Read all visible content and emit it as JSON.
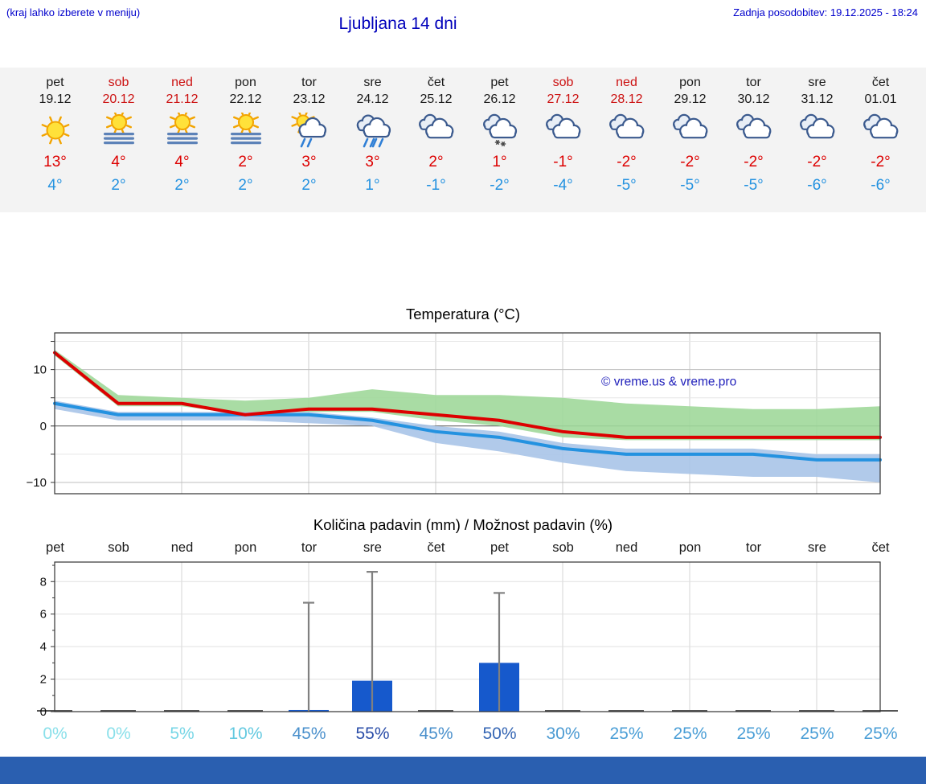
{
  "header": {
    "menu_hint": "(kraj lahko izberete v meniju)",
    "title": "Ljubljana 14 dni",
    "last_update": "Zadnja posodobitev: 19.12.2025 - 18:24"
  },
  "colors": {
    "link_blue": "#0000cc",
    "weekend_red": "#cc1111",
    "tmax_red": "#dd0000",
    "tmin_blue": "#2492e0",
    "bar_blue": "#1659cc",
    "band_green": "#a0d89a",
    "band_blue": "#a8c4e8",
    "footer_blue": "#2a5fb0"
  },
  "forecast_days": [
    {
      "name": "pet",
      "date": "19.12",
      "weekend": false,
      "icon": "sun",
      "tmax": "13°",
      "tmin": "4°"
    },
    {
      "name": "sob",
      "date": "20.12",
      "weekend": true,
      "icon": "sun-fog",
      "tmax": "4°",
      "tmin": "2°"
    },
    {
      "name": "ned",
      "date": "21.12",
      "weekend": true,
      "icon": "sun-fog",
      "tmax": "4°",
      "tmin": "2°"
    },
    {
      "name": "pon",
      "date": "22.12",
      "weekend": false,
      "icon": "sun-fog",
      "tmax": "2°",
      "tmin": "2°"
    },
    {
      "name": "tor",
      "date": "23.12",
      "weekend": false,
      "icon": "sun-rain",
      "tmax": "3°",
      "tmin": "2°"
    },
    {
      "name": "sre",
      "date": "24.12",
      "weekend": false,
      "icon": "rain",
      "tmax": "3°",
      "tmin": "1°"
    },
    {
      "name": "čet",
      "date": "25.12",
      "weekend": false,
      "icon": "cloudy",
      "tmax": "2°",
      "tmin": "-1°"
    },
    {
      "name": "pet",
      "date": "26.12",
      "weekend": false,
      "icon": "snow",
      "tmax": "1°",
      "tmin": "-2°"
    },
    {
      "name": "sob",
      "date": "27.12",
      "weekend": true,
      "icon": "cloudy",
      "tmax": "-1°",
      "tmin": "-4°"
    },
    {
      "name": "ned",
      "date": "28.12",
      "weekend": true,
      "icon": "cloudy",
      "tmax": "-2°",
      "tmin": "-5°"
    },
    {
      "name": "pon",
      "date": "29.12",
      "weekend": false,
      "icon": "cloudy",
      "tmax": "-2°",
      "tmin": "-5°"
    },
    {
      "name": "tor",
      "date": "30.12",
      "weekend": false,
      "icon": "cloudy",
      "tmax": "-2°",
      "tmin": "-5°"
    },
    {
      "name": "sre",
      "date": "31.12",
      "weekend": false,
      "icon": "cloudy",
      "tmax": "-2°",
      "tmin": "-6°"
    },
    {
      "name": "čet",
      "date": "01.01",
      "weekend": false,
      "icon": "cloudy",
      "tmax": "-2°",
      "tmin": "-6°"
    }
  ],
  "chart_data": [
    {
      "type": "line",
      "title": "Temperatura (°C)",
      "watermark": "© vreme.us & vreme.pro",
      "x_days": [
        "pet",
        "sob",
        "ned",
        "pon",
        "tor",
        "sre",
        "čet",
        "pet",
        "sob",
        "ned",
        "pon",
        "tor",
        "sre",
        "čet"
      ],
      "ylim": [
        -12,
        16.5
      ],
      "yticks": [
        10,
        0,
        -10
      ],
      "grid": true,
      "series": [
        {
          "name": "tmax",
          "color": "#dd0000",
          "values": [
            13,
            4,
            4,
            2,
            3,
            3,
            2,
            1,
            -1,
            -2,
            -2,
            -2,
            -2,
            -2
          ]
        },
        {
          "name": "tmin",
          "color": "#2492e0",
          "values": [
            4,
            2,
            2,
            2,
            2,
            1,
            -1,
            -2,
            -4,
            -5,
            -5,
            -5,
            -6,
            -6
          ]
        }
      ],
      "bands": [
        {
          "name": "tmax-range",
          "color": "#a0d89a",
          "upper": [
            13.5,
            5.5,
            5,
            4.5,
            5,
            6.5,
            5.5,
            5.5,
            5,
            4,
            3.5,
            3,
            3,
            3.5
          ],
          "lower": [
            12.5,
            3.5,
            3.5,
            2,
            2.5,
            2.5,
            1,
            0,
            -2,
            -2.5,
            -2.5,
            -2.5,
            -2.5,
            -2.5
          ]
        },
        {
          "name": "tmin-range",
          "color": "#a8c4e8",
          "upper": [
            4.5,
            2.5,
            2.5,
            2.5,
            2.5,
            1.5,
            0,
            -1,
            -3,
            -4,
            -4,
            -4,
            -5,
            -5
          ],
          "lower": [
            3,
            1,
            1,
            1,
            0.5,
            0,
            -3,
            -4.5,
            -6.5,
            -8,
            -8.5,
            -9,
            -9,
            -10
          ]
        }
      ]
    },
    {
      "type": "bar",
      "title": "Količina padavin (mm) / Možnost padavin (%)",
      "categories": [
        "pet",
        "sob",
        "ned",
        "pon",
        "tor",
        "sre",
        "čet",
        "pet",
        "sob",
        "ned",
        "pon",
        "tor",
        "sre",
        "čet"
      ],
      "values_mm": [
        0,
        0,
        0,
        0,
        0.1,
        1.9,
        0,
        3.0,
        0,
        0,
        0,
        0,
        0,
        0
      ],
      "whisker_max_mm": [
        0,
        0,
        0,
        0,
        6.7,
        8.6,
        0,
        7.3,
        0,
        0,
        0,
        0,
        0,
        0
      ],
      "probabilities": [
        "0%",
        "0%",
        "5%",
        "10%",
        "45%",
        "55%",
        "45%",
        "50%",
        "30%",
        "25%",
        "25%",
        "25%",
        "25%",
        "25%"
      ],
      "prob_colors": [
        "#8ae0ea",
        "#8ae0ea",
        "#77d6e6",
        "#63c9e0",
        "#4a90cc",
        "#2a4da8",
        "#4a90cc",
        "#3566b4",
        "#4b9ad2",
        "#4a9ed6",
        "#4a9ed6",
        "#4a9ed6",
        "#4a9ed6",
        "#4a9ed6"
      ],
      "ylim": [
        0,
        9.2
      ],
      "yticks": [
        0,
        2,
        4,
        6,
        8
      ],
      "grid": true
    }
  ]
}
